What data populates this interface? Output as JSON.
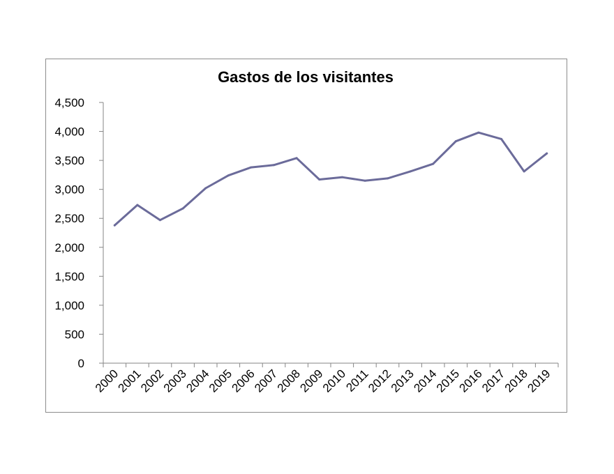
{
  "chart_data": {
    "type": "line",
    "title": "Gastos de los visitantes",
    "xlabel": "",
    "ylabel": "",
    "categories": [
      "2000",
      "2001",
      "2002",
      "2003",
      "2004",
      "2005",
      "2006",
      "2007",
      "2008",
      "2009",
      "2010",
      "2011",
      "2012",
      "2013",
      "2014",
      "2015",
      "2016",
      "2017",
      "2018",
      "2019"
    ],
    "series": [
      {
        "values": [
          2380,
          2730,
          2470,
          2670,
          3020,
          3240,
          3380,
          3420,
          3540,
          3170,
          3210,
          3150,
          3190,
          3310,
          3440,
          3830,
          3980,
          3870,
          3310,
          3620
        ],
        "color": "#6b6b9a"
      }
    ],
    "ylim": [
      0,
      4500
    ],
    "yticks": [
      0,
      500,
      1000,
      1500,
      2000,
      2500,
      3000,
      3500,
      4000,
      4500
    ],
    "ytick_labels": [
      "0",
      "500",
      "1,000",
      "1,500",
      "2,000",
      "2,500",
      "3,000",
      "3,500",
      "4,000",
      "4,500"
    ],
    "grid": false,
    "legend": "none"
  }
}
